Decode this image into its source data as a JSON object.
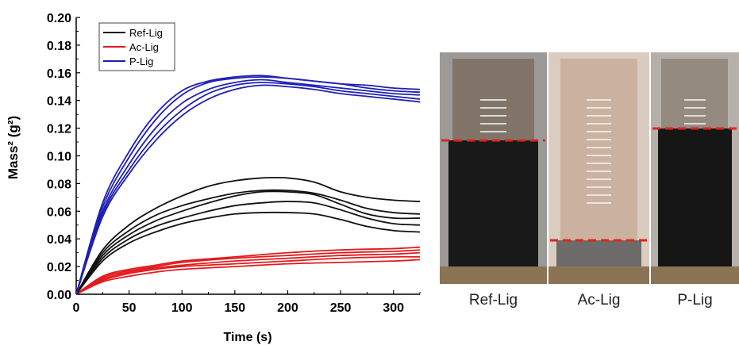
{
  "chart_data": {
    "type": "line",
    "xlabel": "Time (s)",
    "ylabel": "Mass² (g²)",
    "xlim": [
      0,
      325
    ],
    "ylim": [
      0,
      0.2
    ],
    "xticks": [
      0,
      50,
      100,
      150,
      200,
      250,
      300
    ],
    "yticks": [
      "0.00",
      "0.02",
      "0.04",
      "0.06",
      "0.08",
      "0.10",
      "0.12",
      "0.14",
      "0.16",
      "0.18",
      "0.20"
    ],
    "legend_position": "top-left",
    "grid": false,
    "series": [
      {
        "name": "Ref-Lig",
        "color": "#111111",
        "curves": [
          {
            "x": [
              0,
              25,
              50,
              75,
              100,
              125,
              150,
              175,
              200,
              225,
              250,
              275,
              300,
              325
            ],
            "y": [
              0,
              0.032,
              0.05,
              0.062,
              0.071,
              0.078,
              0.082,
              0.084,
              0.084,
              0.081,
              0.074,
              0.07,
              0.068,
              0.067
            ]
          },
          {
            "x": [
              0,
              25,
              50,
              75,
              100,
              125,
              150,
              175,
              200,
              225,
              250,
              275,
              300,
              325
            ],
            "y": [
              0,
              0.03,
              0.046,
              0.057,
              0.064,
              0.069,
              0.073,
              0.075,
              0.075,
              0.073,
              0.068,
              0.062,
              0.059,
              0.058
            ]
          },
          {
            "x": [
              0,
              25,
              50,
              75,
              100,
              125,
              150,
              175,
              200,
              225,
              250,
              275,
              300,
              325
            ],
            "y": [
              0,
              0.028,
              0.043,
              0.053,
              0.06,
              0.066,
              0.071,
              0.074,
              0.074,
              0.072,
              0.065,
              0.058,
              0.055,
              0.055
            ]
          },
          {
            "x": [
              0,
              25,
              50,
              75,
              100,
              125,
              150,
              175,
              200,
              225,
              250,
              275,
              300,
              325
            ],
            "y": [
              0,
              0.026,
              0.04,
              0.049,
              0.055,
              0.06,
              0.064,
              0.066,
              0.067,
              0.066,
              0.061,
              0.055,
              0.051,
              0.05
            ]
          },
          {
            "x": [
              0,
              25,
              50,
              75,
              100,
              125,
              150,
              175,
              200,
              225,
              250,
              275,
              300,
              325
            ],
            "y": [
              0,
              0.024,
              0.037,
              0.045,
              0.051,
              0.055,
              0.058,
              0.059,
              0.059,
              0.058,
              0.054,
              0.049,
              0.046,
              0.045
            ]
          }
        ]
      },
      {
        "name": "Ac-Lig",
        "color": "#e31a1c",
        "curves": [
          {
            "x": [
              0,
              25,
              50,
              75,
              100,
              150,
              200,
              250,
              300,
              325
            ],
            "y": [
              0,
              0.013,
              0.018,
              0.021,
              0.024,
              0.027,
              0.03,
              0.032,
              0.033,
              0.034
            ]
          },
          {
            "x": [
              0,
              25,
              50,
              75,
              100,
              150,
              200,
              250,
              300,
              325
            ],
            "y": [
              0,
              0.012,
              0.017,
              0.02,
              0.023,
              0.026,
              0.028,
              0.03,
              0.031,
              0.032
            ]
          },
          {
            "x": [
              0,
              25,
              50,
              75,
              100,
              150,
              200,
              250,
              300,
              325
            ],
            "y": [
              0,
              0.011,
              0.016,
              0.019,
              0.021,
              0.024,
              0.026,
              0.028,
              0.029,
              0.03
            ]
          },
          {
            "x": [
              0,
              25,
              50,
              75,
              100,
              150,
              200,
              250,
              300,
              325
            ],
            "y": [
              0,
              0.01,
              0.015,
              0.018,
              0.02,
              0.022,
              0.024,
              0.026,
              0.027,
              0.027
            ]
          },
          {
            "x": [
              0,
              25,
              50,
              75,
              100,
              150,
              200,
              250,
              300,
              325
            ],
            "y": [
              0,
              0.009,
              0.013,
              0.016,
              0.018,
              0.02,
              0.022,
              0.023,
              0.024,
              0.025
            ]
          }
        ]
      },
      {
        "name": "P-Lig",
        "color": "#1f1fb4",
        "curves": [
          {
            "x": [
              0,
              25,
              50,
              75,
              100,
              125,
              150,
              175,
              200,
              225,
              250,
              275,
              300,
              325
            ],
            "y": [
              0,
              0.066,
              0.103,
              0.13,
              0.147,
              0.154,
              0.157,
              0.158,
              0.156,
              0.154,
              0.152,
              0.151,
              0.149,
              0.148
            ]
          },
          {
            "x": [
              0,
              25,
              50,
              75,
              100,
              125,
              150,
              175,
              200,
              225,
              250,
              275,
              300,
              325
            ],
            "y": [
              0,
              0.063,
              0.099,
              0.126,
              0.144,
              0.153,
              0.156,
              0.157,
              0.156,
              0.154,
              0.152,
              0.149,
              0.147,
              0.146
            ]
          },
          {
            "x": [
              0,
              25,
              50,
              75,
              100,
              125,
              150,
              175,
              200,
              225,
              250,
              275,
              300,
              325
            ],
            "y": [
              0,
              0.06,
              0.094,
              0.12,
              0.138,
              0.148,
              0.153,
              0.155,
              0.153,
              0.151,
              0.149,
              0.147,
              0.145,
              0.144
            ]
          },
          {
            "x": [
              0,
              25,
              50,
              75,
              100,
              125,
              150,
              175,
              200,
              225,
              250,
              275,
              300,
              325
            ],
            "y": [
              0,
              0.058,
              0.09,
              0.115,
              0.133,
              0.145,
              0.151,
              0.153,
              0.152,
              0.15,
              0.147,
              0.145,
              0.143,
              0.141
            ]
          },
          {
            "x": [
              0,
              25,
              50,
              75,
              100,
              125,
              150,
              175,
              200,
              225,
              250,
              275,
              300,
              325
            ],
            "y": [
              0,
              0.056,
              0.087,
              0.111,
              0.129,
              0.141,
              0.148,
              0.151,
              0.15,
              0.148,
              0.145,
              0.143,
              0.141,
              0.139
            ]
          }
        ]
      }
    ]
  },
  "photos": [
    {
      "caption": "Ref-Lig",
      "glass_color": "#9c9a97",
      "upper_color": "#7d6f62",
      "liquid_color": "#191919",
      "dash_color": "#e3221b",
      "dash_level": 0.62
    },
    {
      "caption": "Ac-Lig",
      "glass_color": "#d9ccc0",
      "upper_color": "#c8ad9a",
      "liquid_color": "#6e6c6a",
      "dash_color": "#e3221b",
      "dash_level": 0.19
    },
    {
      "caption": "P-Lig",
      "glass_color": "#b6b0aa",
      "upper_color": "#8e8479",
      "liquid_color": "#161616",
      "dash_color": "#e3221b",
      "dash_level": 0.67
    }
  ]
}
